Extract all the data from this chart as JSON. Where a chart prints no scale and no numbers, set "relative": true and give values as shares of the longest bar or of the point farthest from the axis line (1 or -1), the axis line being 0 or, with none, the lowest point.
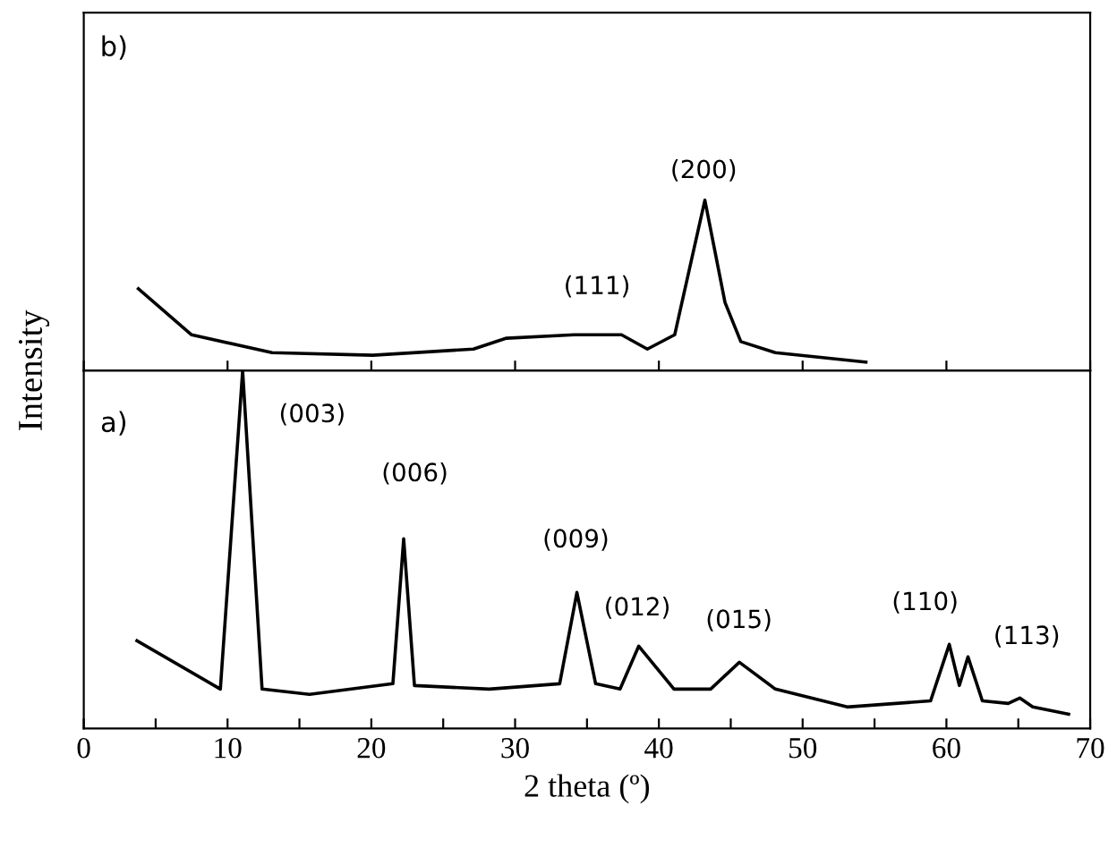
{
  "chart_data": [
    {
      "type": "line",
      "relative": true,
      "xlim": [
        0,
        70
      ],
      "xticks": [
        {
          "value": 0,
          "label": null
        },
        {
          "value": 10,
          "label": null
        },
        {
          "value": 20,
          "label": null
        },
        {
          "value": 30,
          "label": null
        },
        {
          "value": 40,
          "label": null
        },
        {
          "value": 50,
          "label": null
        },
        {
          "value": 60,
          "label": null
        },
        {
          "value": 70,
          "label": null
        }
      ],
      "tick_labels": false,
      "grid": false,
      "legend": false,
      "series": [
        {
          "color": "#000000",
          "x": [
            3.8,
            7.5,
            13.1,
            20.1,
            27.1,
            29.4,
            34.1,
            37.4,
            39.2,
            41.1,
            43.2,
            44.6,
            45.7,
            48.1,
            54.4
          ],
          "values": [
            0.48,
            0.21,
            0.105,
            0.09,
            0.126,
            0.19,
            0.21,
            0.21,
            0.126,
            0.21,
            1.0,
            0.4,
            0.17,
            0.105,
            0.05
          ]
        }
      ],
      "annotations": [
        "b)",
        "(111)",
        "(200)"
      ]
    },
    {
      "type": "line",
      "relative": true,
      "xlim": [
        0,
        70
      ],
      "xticks": [
        0,
        {
          "value": 5,
          "label": null
        },
        10,
        {
          "value": 15,
          "label": null
        },
        20,
        {
          "value": 25,
          "label": null
        },
        30,
        {
          "value": 35,
          "label": null
        },
        40,
        {
          "value": 45,
          "label": null
        },
        50,
        {
          "value": 55,
          "label": null
        },
        60,
        {
          "value": 65,
          "label": null
        },
        70
      ],
      "tick_labels": "x",
      "grid": false,
      "legend": false,
      "xlabel": "2 theta (º)",
      "ylabel": "Intensity",
      "series": [
        {
          "color": "#000000",
          "x": [
            3.7,
            9.5,
            11.05,
            12.4,
            15.7,
            21.5,
            22.25,
            23.0,
            28.2,
            33.1,
            34.3,
            35.6,
            37.3,
            38.6,
            41.05,
            43.6,
            45.6,
            48.1,
            53.1,
            58.9,
            60.2,
            60.9,
            61.5,
            62.5,
            64.3,
            65.1,
            66.0,
            68.5
          ],
          "values": [
            0.245,
            0.11,
            1.0,
            0.11,
            0.095,
            0.125,
            0.53,
            0.12,
            0.11,
            0.125,
            0.38,
            0.125,
            0.11,
            0.23,
            0.11,
            0.11,
            0.185,
            0.11,
            0.06,
            0.077,
            0.235,
            0.12,
            0.2,
            0.077,
            0.07,
            0.085,
            0.06,
            0.04
          ]
        }
      ],
      "annotations": [
        "a)",
        "(003)",
        "(006)",
        "(009)",
        "(012)",
        "(015)",
        "(110)",
        "(113)"
      ]
    }
  ]
}
